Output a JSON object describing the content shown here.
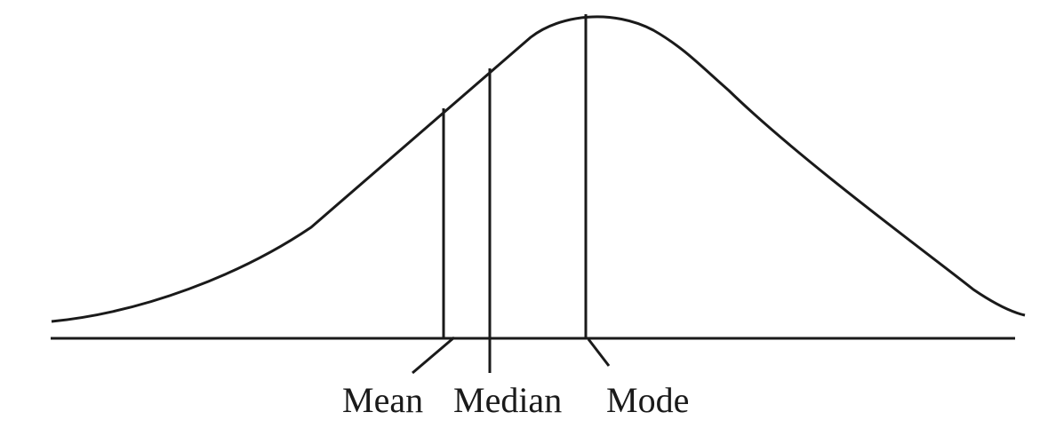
{
  "labels": {
    "mean": "Mean",
    "median": "Median",
    "mode": "Mode"
  },
  "colors": {
    "stroke": "#1a1a1a",
    "background": "#ffffff"
  }
}
